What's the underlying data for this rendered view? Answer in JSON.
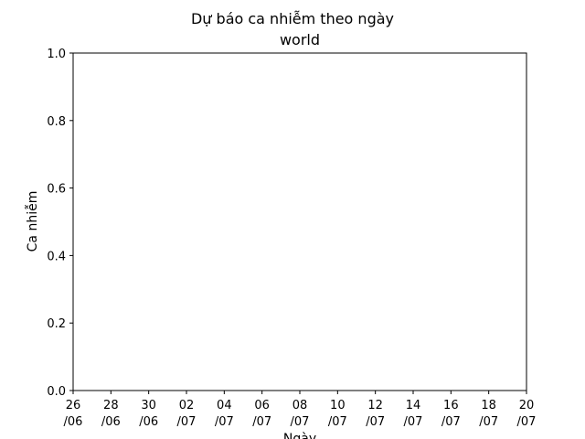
{
  "chart_data": {
    "type": "line",
    "title": "Dự báo ca nhiễm theo ngày",
    "subtitle": "world",
    "xlabel": "Ngày",
    "ylabel": "Ca nhiễm",
    "ylim": [
      0,
      1
    ],
    "y_ticks": [
      "0.0",
      "0.2",
      "0.4",
      "0.6",
      "0.8",
      "1.0"
    ],
    "x_ticks": [
      [
        "26",
        "/06"
      ],
      [
        "28",
        "/06"
      ],
      [
        "30",
        "/06"
      ],
      [
        "02",
        "/07"
      ],
      [
        "04",
        "/07"
      ],
      [
        "06",
        "/07"
      ],
      [
        "08",
        "/07"
      ],
      [
        "10",
        "/07"
      ],
      [
        "12",
        "/07"
      ],
      [
        "14",
        "/07"
      ],
      [
        "16",
        "/07"
      ],
      [
        "18",
        "/07"
      ],
      [
        "20",
        "/07"
      ]
    ],
    "series": [],
    "grid": false,
    "colors": {
      "axis": "#000000",
      "background": "#ffffff"
    }
  }
}
